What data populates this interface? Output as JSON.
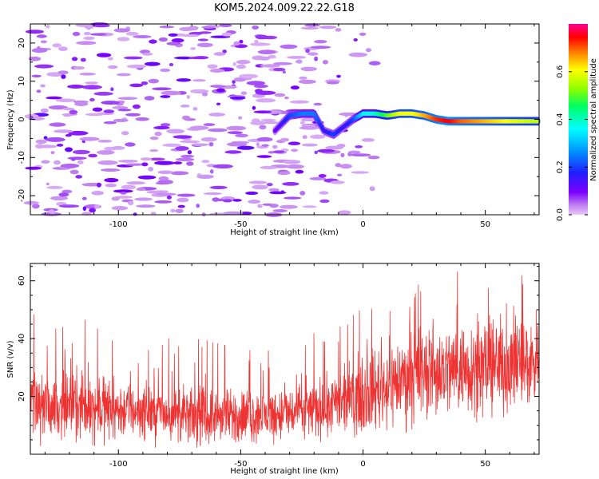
{
  "title": "KOM5.2024.009.22.22.G18",
  "chart_data": [
    {
      "type": "heatmap",
      "xlabel": "Height of straight line (km)",
      "ylabel": "Frequency (Hz)",
      "xlim": [
        -136,
        72
      ],
      "ylim": [
        -25,
        25
      ],
      "x_ticks": [
        -100,
        -50,
        0,
        50
      ],
      "y_ticks": [
        -20,
        -10,
        0,
        10,
        20
      ],
      "colorbar": {
        "label": "Normalized spectral amplitude",
        "range": [
          0,
          0.8
        ],
        "ticks": [
          0.0,
          0.2,
          0.4,
          0.6
        ],
        "colormap": "gist_rainbow_r"
      },
      "ridge": {
        "x": [
          -36,
          -30,
          -25,
          -20,
          -16,
          -12,
          -8,
          -4,
          0,
          5,
          10,
          15,
          20,
          25,
          30,
          35,
          40,
          50,
          60,
          72
        ],
        "freq": [
          -3,
          1,
          1.5,
          1.5,
          -3,
          -4,
          -2,
          0,
          1.5,
          1.5,
          1,
          1.5,
          1.5,
          1,
          0,
          -0.5,
          -0.5,
          -0.5,
          -0.5,
          -0.5
        ],
        "amplitude": [
          0.1,
          0.2,
          0.25,
          0.25,
          0.15,
          0.2,
          0.15,
          0.2,
          0.35,
          0.4,
          0.5,
          0.6,
          0.6,
          0.65,
          0.72,
          0.75,
          0.7,
          0.65,
          0.6,
          0.55
        ]
      },
      "background_amplitude": "low (approx. 0.02 to 0.12), scattered speckle across all frequencies for x < -20 km"
    },
    {
      "type": "line",
      "xlabel": "Height of straight line (km)",
      "ylabel": "SNR (v/v)",
      "xlim": [
        -136,
        72
      ],
      "ylim": [
        0,
        66
      ],
      "x_ticks": [
        -100,
        -50,
        0,
        50
      ],
      "y_ticks": [
        20,
        40,
        60
      ],
      "color": "#ee3333",
      "trend": {
        "x": [
          -136,
          -110,
          -90,
          -70,
          -50,
          -30,
          -10,
          0,
          20,
          40,
          60,
          72
        ],
        "mean": [
          17,
          16,
          15,
          13,
          13,
          14,
          17,
          21,
          27,
          30,
          31,
          32
        ],
        "spread": [
          8,
          8,
          7,
          7,
          7,
          7,
          8,
          10,
          12,
          12,
          12,
          12
        ],
        "peaks": [
          49,
          47,
          38,
          42,
          40,
          45,
          47,
          51,
          58,
          66,
          62,
          66
        ]
      }
    }
  ]
}
